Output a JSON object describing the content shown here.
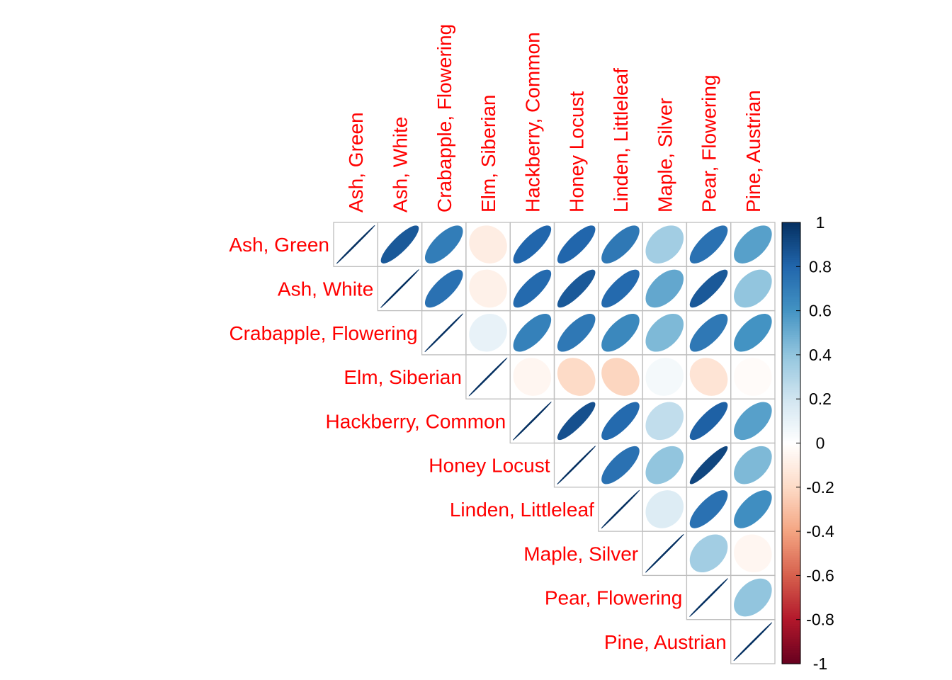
{
  "chart_data": {
    "type": "heatmap",
    "subtype": "correlation matrix, upper triangle, ellipse glyphs",
    "labels": [
      "Ash, Green",
      "Ash, White",
      "Crabapple, Flowering",
      "Elm, Siberian",
      "Hackberry, Common",
      "Honey Locust",
      "Linden, Littleleaf",
      "Maple, Silver",
      "Pear, Flowering",
      "Pine, Austrian"
    ],
    "matrix": [
      [
        1.0,
        0.85,
        0.7,
        -0.1,
        0.8,
        0.8,
        0.72,
        0.35,
        0.75,
        0.55
      ],
      [
        0.85,
        1.0,
        0.75,
        -0.08,
        0.78,
        0.85,
        0.78,
        0.52,
        0.85,
        0.4
      ],
      [
        0.7,
        0.75,
        1.0,
        0.1,
        0.68,
        0.72,
        0.65,
        0.45,
        0.72,
        0.6
      ],
      [
        -0.1,
        -0.08,
        0.1,
        1.0,
        -0.05,
        -0.2,
        -0.22,
        0.05,
        -0.15,
        -0.02
      ],
      [
        0.8,
        0.78,
        0.68,
        -0.05,
        1.0,
        0.88,
        0.78,
        0.25,
        0.82,
        0.55
      ],
      [
        0.8,
        0.85,
        0.72,
        -0.2,
        0.88,
        1.0,
        0.75,
        0.4,
        0.92,
        0.45
      ],
      [
        0.72,
        0.78,
        0.65,
        -0.22,
        0.78,
        0.75,
        1.0,
        0.15,
        0.75,
        0.62
      ],
      [
        0.35,
        0.52,
        0.45,
        0.05,
        0.25,
        0.4,
        0.15,
        1.0,
        0.35,
        -0.05
      ],
      [
        0.75,
        0.85,
        0.72,
        -0.15,
        0.82,
        0.92,
        0.75,
        0.35,
        1.0,
        0.4
      ],
      [
        0.55,
        0.4,
        0.6,
        -0.02,
        0.55,
        0.45,
        0.62,
        -0.05,
        0.4,
        1.0
      ]
    ],
    "colorbar": {
      "ticks": [
        "1",
        "0.8",
        "0.6",
        "0.4",
        "0.2",
        "0",
        "-0.2",
        "-0.4",
        "-0.6",
        "-0.8",
        "-1"
      ],
      "range": [
        -1,
        1
      ],
      "colors": [
        "#67001F",
        "#B2182B",
        "#D6604D",
        "#F4A582",
        "#FDDBC7",
        "#FFFFFF",
        "#D1E5F0",
        "#92C5DE",
        "#4393C3",
        "#2166AC",
        "#053061"
      ]
    },
    "label_color": "#ff0000",
    "grid_color": "#bebebe"
  }
}
